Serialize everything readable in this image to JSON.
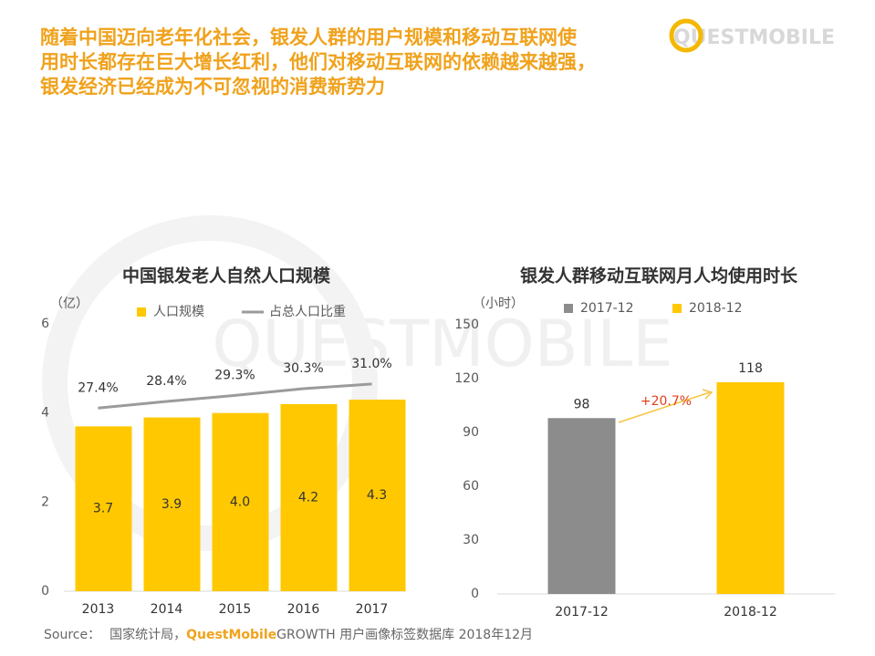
{
  "header": {
    "headline": [
      "随着中国迈向老年化社会，银发人群的用户规模和移动互联网使",
      "用时长都存在巨大增长红利，他们对移动互联网的依赖越来越强，",
      "银发经济已经成为不可忽视的消费新势力"
    ],
    "logo": "QUESTMOBILE"
  },
  "watermark": "QUESTMOBILE",
  "chart_data": [
    {
      "type": "bar",
      "title": "中国银发老人自然人口规模",
      "y_label": "（亿）",
      "categories": [
        "2013",
        "2014",
        "2015",
        "2016",
        "2017"
      ],
      "series": [
        {
          "name": "人口规模",
          "color": "#ffc800",
          "values": [
            3.7,
            3.9,
            4.0,
            4.2,
            4.3
          ],
          "value_labels": [
            "3.7",
            "3.9",
            "4.0",
            "4.2",
            "4.3"
          ]
        },
        {
          "name": "占总人口比重",
          "type": "line",
          "axis": "y2",
          "color": "#9b9b9b",
          "values": [
            27.4,
            28.4,
            29.3,
            30.3,
            31.0
          ],
          "value_labels": [
            "27.4%",
            "28.4%",
            "29.3%",
            "30.3%",
            "31.0%"
          ]
        }
      ],
      "ylim": [
        0,
        6
      ],
      "yticks": [
        0,
        2,
        4,
        6
      ],
      "y2lim": [
        0,
        40
      ]
    },
    {
      "type": "bar",
      "title": "银发人群移动互联网月人均使用时长",
      "y_label": "（小时）",
      "categories": [
        "2017-12",
        "2018-12"
      ],
      "series": [
        {
          "name": "2017-12",
          "color": "#8c8c8c",
          "values": [
            98,
            null
          ]
        },
        {
          "name": "2018-12",
          "color": "#ffc800",
          "values": [
            null,
            118
          ]
        }
      ],
      "ylim": [
        0,
        150
      ],
      "yticks": [
        0,
        30,
        60,
        90,
        120,
        150
      ],
      "annotation": "+20.7%"
    }
  ],
  "source": {
    "label": "Source：",
    "text1": "国家统计局，",
    "brand": "QuestMobile",
    "text2": "GROWTH 用户画像标签数据库 2018年12月"
  }
}
